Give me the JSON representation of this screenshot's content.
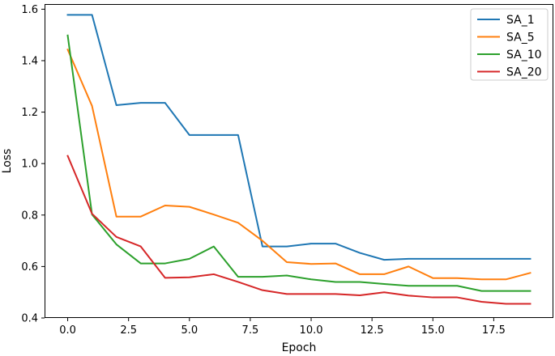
{
  "chart_data": {
    "type": "line",
    "title": "",
    "xlabel": "Epoch",
    "ylabel": "Loss",
    "xlim": [
      -0.95,
      19.95
    ],
    "ylim": [
      0.4,
      1.62
    ],
    "xticks": [
      0.0,
      2.5,
      5.0,
      7.5,
      10.0,
      12.5,
      15.0,
      17.5
    ],
    "xtick_labels": [
      "0.0",
      "2.5",
      "5.0",
      "7.5",
      "10.0",
      "12.5",
      "15.0",
      "17.5"
    ],
    "yticks": [
      0.4,
      0.6,
      0.8,
      1.0,
      1.2,
      1.4,
      1.6
    ],
    "ytick_labels": [
      "0.4",
      "0.6",
      "0.8",
      "1.0",
      "1.2",
      "1.4",
      "1.6"
    ],
    "grid": false,
    "legend_position": "top-right",
    "x": [
      0,
      1,
      2,
      3,
      4,
      5,
      6,
      7,
      8,
      9,
      10,
      11,
      12,
      13,
      14,
      15,
      16,
      17,
      18,
      19
    ],
    "series": [
      {
        "name": "SA_1",
        "color": "#1f77b4",
        "values": [
          1.578,
          1.578,
          1.227,
          1.236,
          1.236,
          1.111,
          1.111,
          1.111,
          0.678,
          0.678,
          0.689,
          0.689,
          0.653,
          0.626,
          0.63,
          0.63,
          0.63,
          0.63,
          0.63,
          0.63
        ]
      },
      {
        "name": "SA_5",
        "color": "#ff7f0e",
        "values": [
          1.443,
          1.224,
          0.794,
          0.794,
          0.837,
          0.832,
          0.802,
          0.77,
          0.7,
          0.617,
          0.61,
          0.612,
          0.57,
          0.57,
          0.6,
          0.555,
          0.555,
          0.55,
          0.55,
          0.575
        ]
      },
      {
        "name": "SA_10",
        "color": "#2ca02c",
        "values": [
          1.498,
          0.802,
          0.686,
          0.612,
          0.612,
          0.63,
          0.678,
          0.56,
          0.56,
          0.565,
          0.55,
          0.54,
          0.54,
          0.532,
          0.525,
          0.525,
          0.525,
          0.505,
          0.505,
          0.505
        ]
      },
      {
        "name": "SA_20",
        "color": "#d62728",
        "values": [
          1.03,
          0.805,
          0.715,
          0.678,
          0.556,
          0.558,
          0.57,
          0.54,
          0.508,
          0.493,
          0.493,
          0.493,
          0.488,
          0.5,
          0.487,
          0.48,
          0.48,
          0.463,
          0.455,
          0.455
        ]
      }
    ]
  }
}
